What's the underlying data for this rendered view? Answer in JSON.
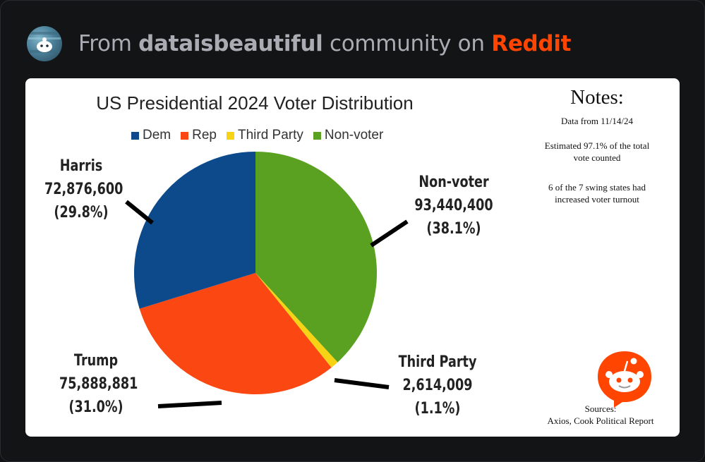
{
  "header": {
    "prefix": "From",
    "community": "dataisbeautiful",
    "middle": "community on",
    "site": "Reddit",
    "avatar_icon": "reddit-snoo-avatar-icon"
  },
  "chart_data": {
    "type": "pie",
    "title": "US Presidential 2024 Voter Distribution",
    "legend": [
      "Dem",
      "Rep",
      "Third Party",
      "Non-voter"
    ],
    "legend_position": "top",
    "slices": [
      {
        "legend": "Non-voter",
        "candidate": "Non-voter",
        "value": 93440400,
        "value_label": "93,440,400",
        "percent_label": "(38.1%)",
        "color": "#5aa122"
      },
      {
        "legend": "Third Party",
        "candidate": "Third Party",
        "value": 2614009,
        "value_label": "2,614,009",
        "percent_label": "(1.1%)",
        "color": "#f7d315"
      },
      {
        "legend": "Rep",
        "candidate": "Trump",
        "value": 75888881,
        "value_label": "75,888,881",
        "percent_label": "(31.0%)",
        "color": "#fb4813"
      },
      {
        "legend": "Dem",
        "candidate": "Harris",
        "value": 72876600,
        "value_label": "72,876,600",
        "percent_label": "(29.8%)",
        "color": "#0d4a8c"
      }
    ]
  },
  "notes": {
    "title": "Notes:",
    "date": "Data from 11/14/24",
    "estimate": "Estimated 97.1% of the total vote counted",
    "swing": "6 of the 7 swing states had increased voter turnout"
  },
  "sources": {
    "label": "Sources:",
    "list": "Axios, Cook Political Report",
    "logo_icon": "reddit-snoo-logo-icon"
  }
}
